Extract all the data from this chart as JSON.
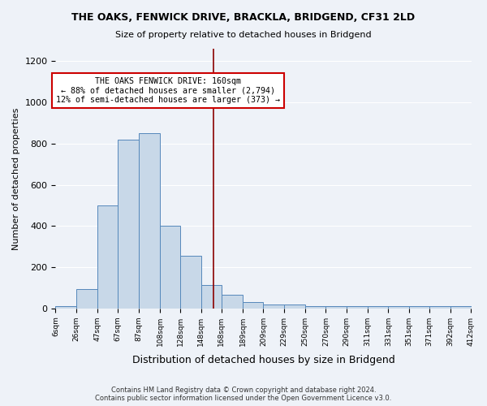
{
  "title": "THE OAKS, FENWICK DRIVE, BRACKLA, BRIDGEND, CF31 2LD",
  "subtitle": "Size of property relative to detached houses in Bridgend",
  "xlabel": "Distribution of detached houses by size in Bridgend",
  "ylabel": "Number of detached properties",
  "footer": "Contains HM Land Registry data © Crown copyright and database right 2024.\nContains public sector information licensed under the Open Government Licence v3.0.",
  "bin_labels": [
    "6sqm",
    "26sqm",
    "47sqm",
    "67sqm",
    "87sqm",
    "108sqm",
    "128sqm",
    "148sqm",
    "168sqm",
    "189sqm",
    "209sqm",
    "229sqm",
    "250sqm",
    "270sqm",
    "290sqm",
    "311sqm",
    "331sqm",
    "351sqm",
    "371sqm",
    "392sqm",
    "412sqm"
  ],
  "bar_heights": [
    10,
    95,
    95,
    500,
    500,
    820,
    820,
    850,
    400,
    400,
    255,
    255,
    115,
    115,
    65,
    65,
    30,
    30,
    18,
    18,
    18,
    18,
    18,
    18,
    12,
    12,
    10
  ],
  "values": [
    10,
    95,
    500,
    820,
    850,
    400,
    255,
    115,
    65,
    30,
    18,
    18,
    12,
    10,
    10,
    10,
    10,
    10,
    10,
    10
  ],
  "bar_color": "#c8d8e8",
  "bar_edge_color": "#5588bb",
  "vline_x": 160,
  "vline_color": "#8b0000",
  "annotation_text": "THE OAKS FENWICK DRIVE: 160sqm\n← 88% of detached houses are smaller (2,794)\n12% of semi-detached houses are larger (373) →",
  "annotation_box_color": "white",
  "annotation_border_color": "#cc0000",
  "ylim": [
    0,
    1260
  ],
  "bg_color": "#eef2f8",
  "grid_color": "white"
}
